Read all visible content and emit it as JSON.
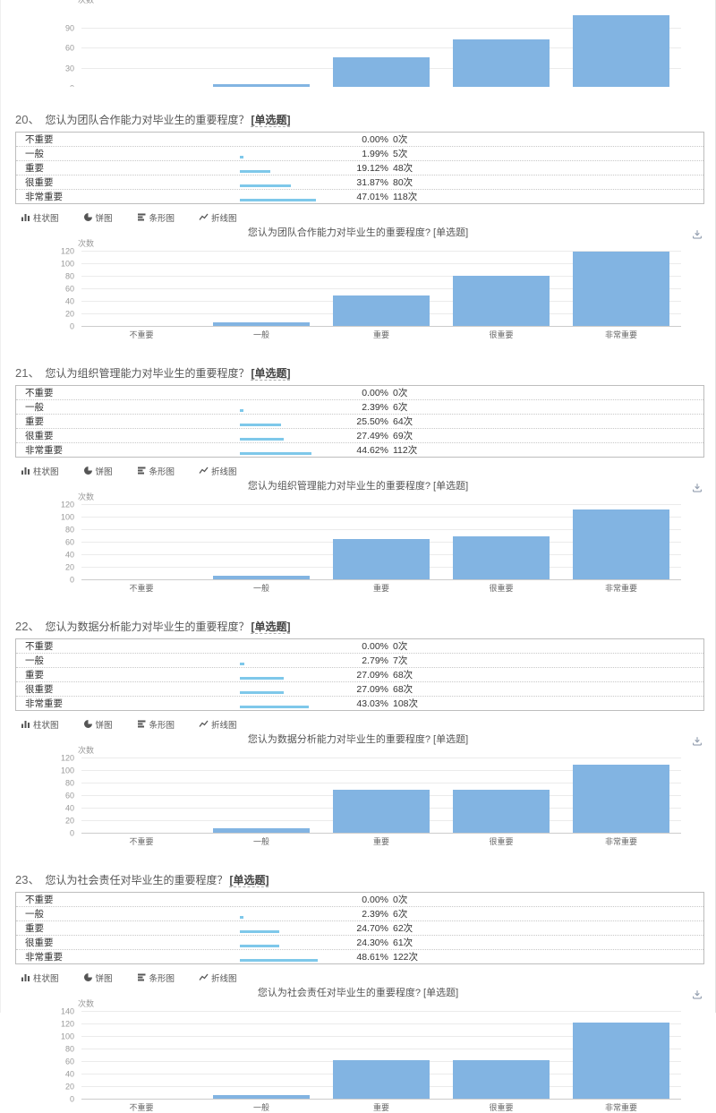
{
  "colors": {
    "bar": "#82B4E2",
    "mini_bar": "#7EC8EA"
  },
  "categories": [
    "不重要",
    "一般",
    "重要",
    "很重要",
    "非常重要"
  ],
  "chart_tabs": [
    {
      "name": "bar-chart",
      "icon": "bar-chart-icon",
      "label": "柱状图"
    },
    {
      "name": "pie-chart",
      "icon": "pie-chart-icon",
      "label": "饼图"
    },
    {
      "name": "hbar-chart",
      "icon": "hbar-chart-icon",
      "label": "条形图"
    },
    {
      "name": "line-chart",
      "icon": "line-chart-icon",
      "label": "折线图"
    }
  ],
  "top_chart": {
    "ylabel": "次数",
    "ticks": [
      90,
      60,
      30,
      0
    ],
    "values": [
      0,
      5,
      45,
      72,
      108
    ],
    "ymax": 120
  },
  "questions": [
    {
      "number": "20、",
      "title": "您认为团队合作能力对毕业生的重要程度？",
      "type_tag": "[单选题]",
      "rows": [
        {
          "label": "不重要",
          "percent": "0.00%",
          "count": "0次",
          "pct": 0
        },
        {
          "label": "一般",
          "percent": "1.99%",
          "count": "5次",
          "pct": 1.99
        },
        {
          "label": "重要",
          "percent": "19.12%",
          "count": "48次",
          "pct": 19.12
        },
        {
          "label": "很重要",
          "percent": "31.87%",
          "count": "80次",
          "pct": 31.87
        },
        {
          "label": "非常重要",
          "percent": "47.01%",
          "count": "118次",
          "pct": 47.01
        }
      ],
      "chart": {
        "title": "您认为团队合作能力对毕业生的重要程度? [单选题]",
        "ylabel": "次数",
        "ticks": [
          120,
          100,
          80,
          60,
          40,
          20,
          0
        ],
        "values": [
          0,
          5,
          48,
          80,
          118
        ],
        "ymax": 120
      }
    },
    {
      "number": "21、",
      "title": "您认为组织管理能力对毕业生的重要程度？",
      "type_tag": "[单选题]",
      "rows": [
        {
          "label": "不重要",
          "percent": "0.00%",
          "count": "0次",
          "pct": 0
        },
        {
          "label": "一般",
          "percent": "2.39%",
          "count": "6次",
          "pct": 2.39
        },
        {
          "label": "重要",
          "percent": "25.50%",
          "count": "64次",
          "pct": 25.5
        },
        {
          "label": "很重要",
          "percent": "27.49%",
          "count": "69次",
          "pct": 27.49
        },
        {
          "label": "非常重要",
          "percent": "44.62%",
          "count": "112次",
          "pct": 44.62
        }
      ],
      "chart": {
        "title": "您认为组织管理能力对毕业生的重要程度? [单选题]",
        "ylabel": "次数",
        "ticks": [
          120,
          100,
          80,
          60,
          40,
          20,
          0
        ],
        "values": [
          0,
          6,
          64,
          69,
          112
        ],
        "ymax": 120
      }
    },
    {
      "number": "22、",
      "title": "您认为数据分析能力对毕业生的重要程度？",
      "type_tag": "[单选题]",
      "rows": [
        {
          "label": "不重要",
          "percent": "0.00%",
          "count": "0次",
          "pct": 0
        },
        {
          "label": "一般",
          "percent": "2.79%",
          "count": "7次",
          "pct": 2.79
        },
        {
          "label": "重要",
          "percent": "27.09%",
          "count": "68次",
          "pct": 27.09
        },
        {
          "label": "很重要",
          "percent": "27.09%",
          "count": "68次",
          "pct": 27.09
        },
        {
          "label": "非常重要",
          "percent": "43.03%",
          "count": "108次",
          "pct": 43.03
        }
      ],
      "chart": {
        "title": "您认为数据分析能力对毕业生的重要程度? [单选题]",
        "ylabel": "次数",
        "ticks": [
          120,
          100,
          80,
          60,
          40,
          20,
          0
        ],
        "values": [
          0,
          7,
          68,
          68,
          108
        ],
        "ymax": 120
      }
    },
    {
      "number": "23、",
      "title": "您认为社会责任对毕业生的重要程度？",
      "type_tag": "[单选题]",
      "rows": [
        {
          "label": "不重要",
          "percent": "0.00%",
          "count": "0次",
          "pct": 0
        },
        {
          "label": "一般",
          "percent": "2.39%",
          "count": "6次",
          "pct": 2.39
        },
        {
          "label": "重要",
          "percent": "24.70%",
          "count": "62次",
          "pct": 24.7
        },
        {
          "label": "很重要",
          "percent": "24.30%",
          "count": "61次",
          "pct": 24.3
        },
        {
          "label": "非常重要",
          "percent": "48.61%",
          "count": "122次",
          "pct": 48.61
        }
      ],
      "chart": {
        "title": "您认为社会责任对毕业生的重要程度? [单选题]",
        "ylabel": "次数",
        "ticks": [
          140,
          120,
          100,
          80,
          60,
          40,
          20,
          0
        ],
        "values": [
          0,
          6,
          62,
          61,
          122
        ],
        "ymax": 140
      }
    }
  ],
  "chart_data": [
    {
      "type": "bar",
      "title": "",
      "categories": [
        "不重要",
        "一般",
        "重要",
        "很重要",
        "非常重要"
      ],
      "values": [
        0,
        5,
        45,
        72,
        108
      ],
      "xlabel": "",
      "ylabel": "次数",
      "ylim": [
        0,
        120
      ],
      "grid": true,
      "legend": "none"
    },
    {
      "type": "bar",
      "title": "您认为团队合作能力对毕业生的重要程度? [单选题]",
      "categories": [
        "不重要",
        "一般",
        "重要",
        "很重要",
        "非常重要"
      ],
      "values": [
        0,
        5,
        48,
        80,
        118
      ],
      "xlabel": "",
      "ylabel": "次数",
      "ylim": [
        0,
        120
      ],
      "grid": true,
      "legend": "none"
    },
    {
      "type": "bar",
      "title": "您认为组织管理能力对毕业生的重要程度? [单选题]",
      "categories": [
        "不重要",
        "一般",
        "重要",
        "很重要",
        "非常重要"
      ],
      "values": [
        0,
        6,
        64,
        69,
        112
      ],
      "xlabel": "",
      "ylabel": "次数",
      "ylim": [
        0,
        120
      ],
      "grid": true,
      "legend": "none"
    },
    {
      "type": "bar",
      "title": "您认为数据分析能力对毕业生的重要程度? [单选题]",
      "categories": [
        "不重要",
        "一般",
        "重要",
        "很重要",
        "非常重要"
      ],
      "values": [
        0,
        7,
        68,
        68,
        108
      ],
      "xlabel": "",
      "ylabel": "次数",
      "ylim": [
        0,
        120
      ],
      "grid": true,
      "legend": "none"
    },
    {
      "type": "bar",
      "title": "您认为社会责任对毕业生的重要程度? [单选题]",
      "categories": [
        "不重要",
        "一般",
        "重要",
        "很重要",
        "非常重要"
      ],
      "values": [
        0,
        6,
        62,
        61,
        122
      ],
      "xlabel": "",
      "ylabel": "次数",
      "ylim": [
        0,
        140
      ],
      "grid": true,
      "legend": "none"
    }
  ]
}
